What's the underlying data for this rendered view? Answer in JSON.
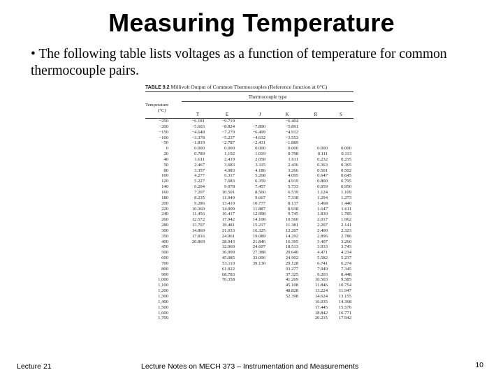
{
  "slide": {
    "title": "Measuring Temperature",
    "bullet": "• The following table lists voltages as a function of temperature for common thermocouple pairs."
  },
  "table": {
    "caption_label": "TABLE 9.2",
    "caption_text": "Millivolt Output of Common Thermocouples (Reference Junction at 0°C)",
    "group_header": "Thermocouple type",
    "temp_header_line1": "Temperature",
    "temp_header_line2": "(°C)",
    "columns": [
      "T",
      "E",
      "J",
      "K",
      "R",
      "S"
    ],
    "rows": [
      [
        "−250",
        "−6.181",
        "−9.719",
        "",
        "−6.404",
        "",
        ""
      ],
      [
        "−200",
        "−5.603",
        "−8.824",
        "−7.890",
        "−5.891",
        "",
        ""
      ],
      [
        "−150",
        "−4.648",
        "−7.279",
        "−6.499",
        "−4.912",
        "",
        ""
      ],
      [
        "−100",
        "−3.378",
        "−5.237",
        "−4.632",
        "−3.553",
        "",
        ""
      ],
      [
        "−50",
        "−1.819",
        "−2.787",
        "−2.431",
        "−1.889",
        "",
        ""
      ],
      [
        "0",
        "0.000",
        "0.000",
        "0.000",
        "0.000",
        "0.000",
        "0.000"
      ],
      [
        "20",
        "0.789",
        "1.192",
        "1.019",
        "0.798",
        "0.111",
        "0.113"
      ],
      [
        "40",
        "1.611",
        "2.419",
        "2.058",
        "1.611",
        "0.232",
        "0.235"
      ],
      [
        "50",
        "2.467",
        "3.683",
        "3.115",
        "2.436",
        "0.363",
        "0.365"
      ],
      [
        "80",
        "3.357",
        "4.983",
        "4.186",
        "3.266",
        "0.501",
        "0.502"
      ],
      [
        "100",
        "4.277",
        "6.317",
        "5.268",
        "4.095",
        "0.647",
        "0.645"
      ],
      [
        "120",
        "5.227",
        "7.683",
        "6.359",
        "4.919",
        "0.800",
        "0.795"
      ],
      [
        "140",
        "6.204",
        "9.078",
        "7.457",
        "5.733",
        "0.959",
        "0.950"
      ],
      [
        "160",
        "7.207",
        "10.501",
        "8.560",
        "6.539",
        "1.124",
        "1.109"
      ],
      [
        "180",
        "8.235",
        "11.949",
        "9.667",
        "7.338",
        "1.294",
        "1.273"
      ],
      [
        "200",
        "9.286",
        "13.419",
        "10.777",
        "8.137",
        "1.468",
        "1.440"
      ],
      [
        "220",
        "10.360",
        "14.909",
        "11.887",
        "8.938",
        "1.647",
        "1.611"
      ],
      [
        "240",
        "11.456",
        "16.417",
        "12.998",
        "9.745",
        "1.830",
        "1.785"
      ],
      [
        "260",
        "12.572",
        "17.942",
        "14.108",
        "10.560",
        "2.017",
        "1.962"
      ],
      [
        "280",
        "13.707",
        "19.481",
        "15.217",
        "11.381",
        "2.207",
        "2.141"
      ],
      [
        "300",
        "14.860",
        "21.033",
        "16.325",
        "12.207",
        "2.400",
        "2.323"
      ],
      [
        "350",
        "17.816",
        "24.961",
        "19.089",
        "14.292",
        "2.896",
        "2.786"
      ],
      [
        "400",
        "20.869",
        "28.943",
        "21.846",
        "16.395",
        "3.407",
        "3.260"
      ],
      [
        "450",
        "",
        "32.960",
        "24.607",
        "18.513",
        "3.933",
        "3.743"
      ],
      [
        "500",
        "",
        "36.999",
        "27.388",
        "20.640",
        "4.471",
        "4.234"
      ],
      [
        "600",
        "",
        "45.085",
        "33.096",
        "24.902",
        "5.582",
        "5.237"
      ],
      [
        "700",
        "",
        "53.110",
        "39.130",
        "29.128",
        "6.741",
        "6.274"
      ],
      [
        "800",
        "",
        "61.022",
        "",
        "33.277",
        "7.949",
        "7.345"
      ],
      [
        "900",
        "",
        "68.783",
        "",
        "37.325",
        "9.203",
        "8.448"
      ],
      [
        "1,000",
        "",
        "76.358",
        "",
        "41.269",
        "10.503",
        "9.585"
      ],
      [
        "1,100",
        "",
        "",
        "",
        "45.108",
        "11.846",
        "10.754"
      ],
      [
        "1,200",
        "",
        "",
        "",
        "48.828",
        "13.224",
        "11.947"
      ],
      [
        "1,300",
        "",
        "",
        "",
        "52.398",
        "14.624",
        "13.155"
      ],
      [
        "1,400",
        "",
        "",
        "",
        "",
        "16.035",
        "14.368"
      ],
      [
        "1,500",
        "",
        "",
        "",
        "",
        "17.445",
        "15.576"
      ],
      [
        "1,600",
        "",
        "",
        "",
        "",
        "18.842",
        "16.771"
      ],
      [
        "1,700",
        "",
        "",
        "",
        "",
        "20.215",
        "17.942"
      ]
    ]
  },
  "footer": {
    "left": "Lecture 21",
    "center": "Lecture Notes on MECH 373 – Instrumentation and Measurements",
    "page_number": "10"
  }
}
